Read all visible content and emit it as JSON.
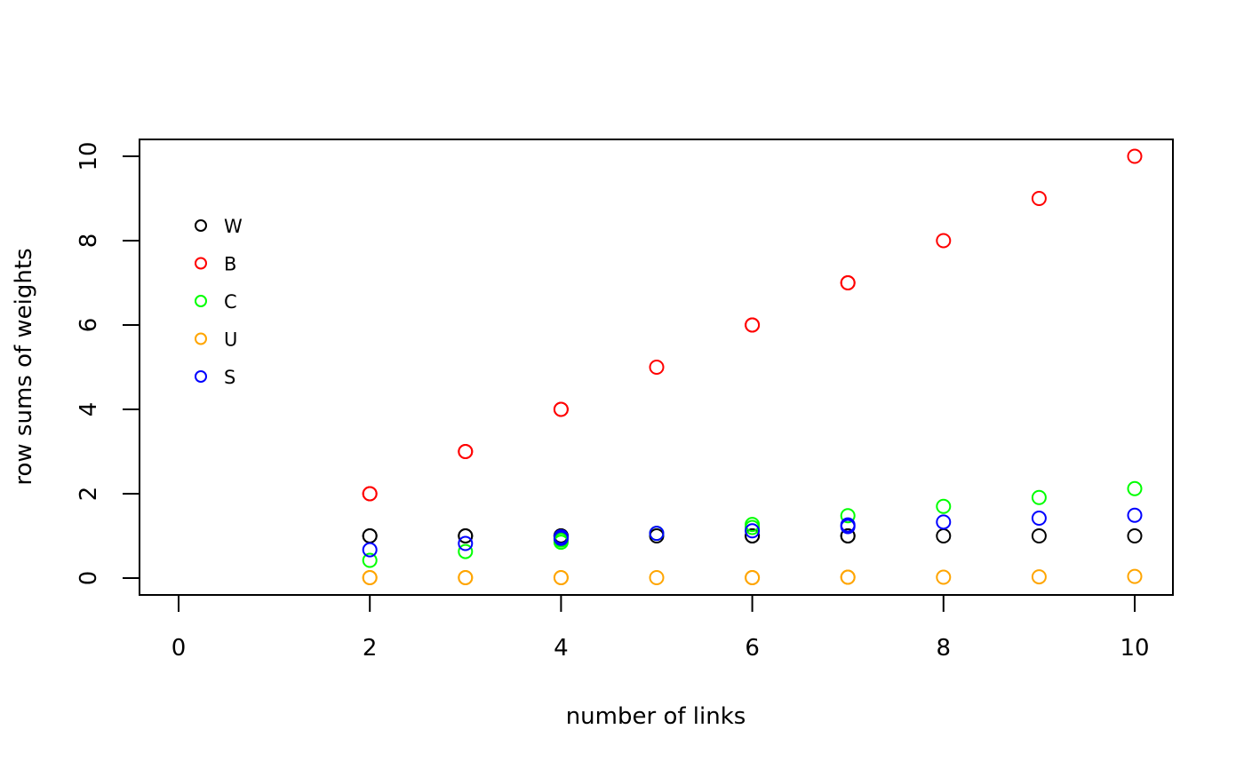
{
  "chart_data": {
    "type": "scatter",
    "title": "",
    "xlabel": "number of links",
    "ylabel": "row sums of weights",
    "xlim": [
      0,
      10
    ],
    "ylim": [
      0,
      10
    ],
    "xticks": [
      0,
      2,
      4,
      6,
      8,
      10
    ],
    "yticks": [
      0,
      2,
      4,
      6,
      8,
      10
    ],
    "grid": false,
    "legend_position": "top-left",
    "series": [
      {
        "name": "W",
        "color": "#000000",
        "points": [
          [
            2,
            1
          ],
          [
            2,
            1
          ],
          [
            3,
            1
          ],
          [
            3,
            1
          ],
          [
            4,
            1
          ],
          [
            4,
            1
          ],
          [
            4,
            1
          ],
          [
            5,
            1
          ],
          [
            6,
            1
          ],
          [
            6,
            1
          ],
          [
            7,
            1
          ],
          [
            7,
            1
          ],
          [
            8,
            1
          ],
          [
            9,
            1
          ],
          [
            10,
            1
          ]
        ]
      },
      {
        "name": "B",
        "color": "#ff0000",
        "points": [
          [
            2,
            2
          ],
          [
            2,
            2
          ],
          [
            3,
            3
          ],
          [
            3,
            3
          ],
          [
            4,
            4
          ],
          [
            4,
            4
          ],
          [
            5,
            5
          ],
          [
            6,
            6
          ],
          [
            6,
            6
          ],
          [
            7,
            7
          ],
          [
            7,
            7
          ],
          [
            8,
            8
          ],
          [
            9,
            9
          ],
          [
            10,
            10
          ]
        ]
      },
      {
        "name": "C",
        "color": "#00ff00",
        "points": [
          [
            2,
            0.42
          ],
          [
            3,
            0.63
          ],
          [
            4,
            0.85
          ],
          [
            4,
            0.9
          ],
          [
            5,
            1.06
          ],
          [
            6,
            1.27
          ],
          [
            6,
            1.2
          ],
          [
            7,
            1.48
          ],
          [
            8,
            1.7
          ],
          [
            9,
            1.91
          ],
          [
            10,
            2.12
          ]
        ]
      },
      {
        "name": "U",
        "color": "#ffa500",
        "points": [
          [
            2,
            0.01
          ],
          [
            2,
            0.01
          ],
          [
            3,
            0.01
          ],
          [
            3,
            0.01
          ],
          [
            4,
            0.01
          ],
          [
            4,
            0.01
          ],
          [
            5,
            0.01
          ],
          [
            6,
            0.01
          ],
          [
            6,
            0.01
          ],
          [
            7,
            0.02
          ],
          [
            7,
            0.02
          ],
          [
            8,
            0.02
          ],
          [
            9,
            0.03
          ],
          [
            10,
            0.04
          ]
        ]
      },
      {
        "name": "S",
        "color": "#0000ff",
        "points": [
          [
            2,
            0.67
          ],
          [
            3,
            0.82
          ],
          [
            4,
            0.94
          ],
          [
            4,
            0.98
          ],
          [
            5,
            1.06
          ],
          [
            6,
            1.12
          ],
          [
            7,
            1.22
          ],
          [
            7,
            1.26
          ],
          [
            8,
            1.33
          ],
          [
            9,
            1.42
          ],
          [
            10,
            1.49
          ]
        ]
      }
    ]
  }
}
